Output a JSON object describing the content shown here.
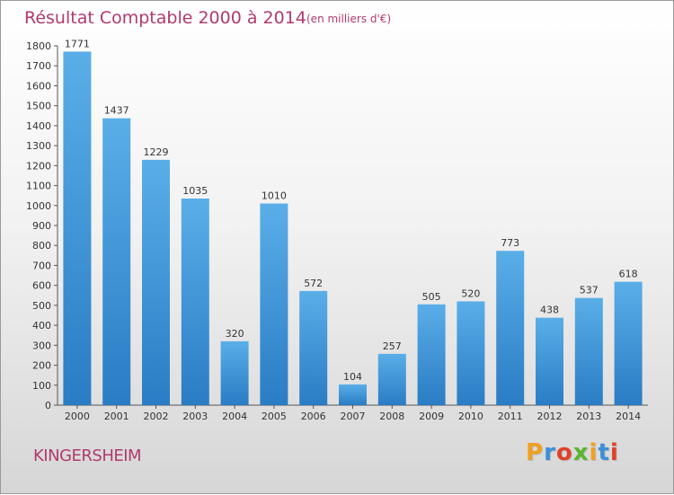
{
  "header": {
    "title": "Résultat Comptable 2000 à 2014",
    "subtitle": "(en milliers d'€)"
  },
  "footer": {
    "city": "KINGERSHEIM",
    "logo_text": "Proxiti"
  },
  "colors": {
    "title": "#b03a6e",
    "bar_light": "#5aaee8",
    "bar_dark": "#2a7cc4",
    "logo": [
      "#f0a020",
      "#3a8fd8",
      "#e0402a",
      "#5bb532",
      "#f0a020",
      "#3a8fd8",
      "#e0402a"
    ]
  },
  "chart_data": {
    "type": "bar",
    "title": "Résultat Comptable 2000 à 2014",
    "subtitle": "(en milliers d'€)",
    "categories": [
      "2000",
      "2001",
      "2002",
      "2003",
      "2004",
      "2005",
      "2006",
      "2007",
      "2008",
      "2009",
      "2010",
      "2011",
      "2012",
      "2013",
      "2014"
    ],
    "values": [
      1771,
      1437,
      1229,
      1035,
      320,
      1010,
      572,
      104,
      257,
      505,
      520,
      773,
      438,
      537,
      618
    ],
    "ylim": [
      0,
      1800
    ],
    "yticks": [
      0,
      100,
      200,
      300,
      400,
      500,
      600,
      700,
      800,
      900,
      1000,
      1100,
      1200,
      1300,
      1400,
      1500,
      1600,
      1700,
      1800
    ],
    "grid": false,
    "legend": "none"
  }
}
